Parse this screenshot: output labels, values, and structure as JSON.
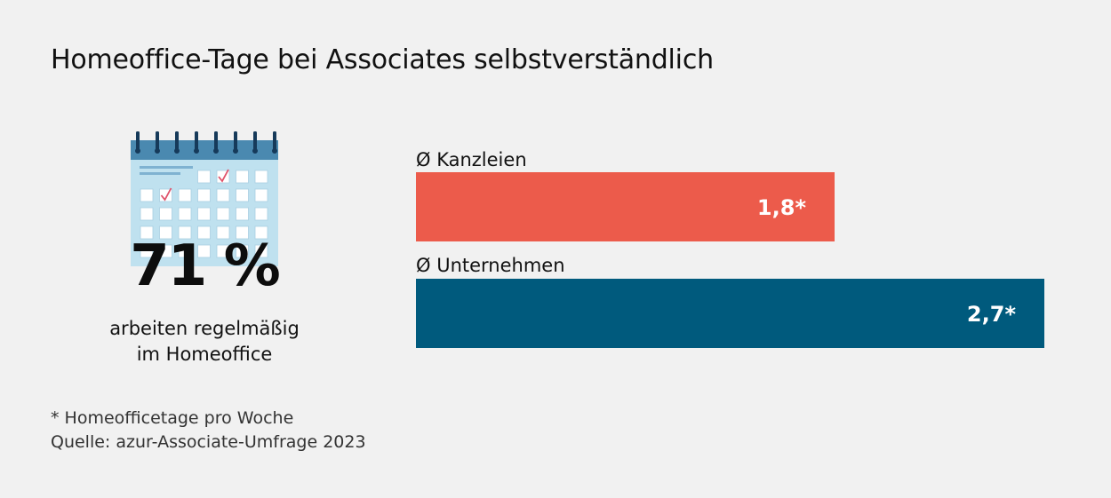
{
  "title": "Homeoffice-Tage bei Associates selbstverständlich",
  "stat": {
    "value": "71 %",
    "caption_line1": "arbeiten regelmäßig",
    "caption_line2": "im Homeoffice",
    "icon": "calendar-icon"
  },
  "footnote": {
    "line1": "* Homeofficetage pro Woche",
    "line2": "Quelle: azur-Associate-Umfrage 2023"
  },
  "colors": {
    "background": "#f1f1f1",
    "kanzleien": "#ec5b4b",
    "unternehmen": "#005a7d",
    "calendar_header": "#4a89b0",
    "calendar_body": "#bfe1ef"
  },
  "chart_data": {
    "type": "bar",
    "orientation": "horizontal",
    "categories": [
      "Ø Kanzleien",
      "Ø Unternehmen"
    ],
    "values": [
      1.8,
      2.7
    ],
    "value_labels": [
      "1,8*",
      "2,7*"
    ],
    "xlim": [
      0,
      2.7
    ],
    "grid": false,
    "title": "",
    "xlabel": "",
    "ylabel": ""
  }
}
